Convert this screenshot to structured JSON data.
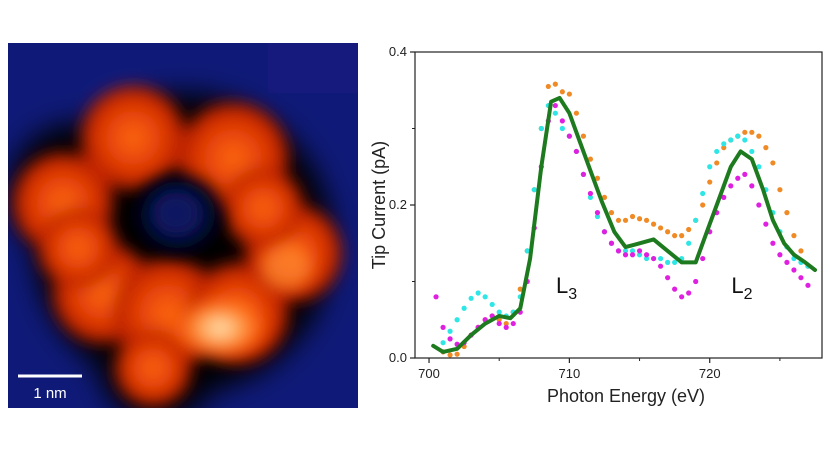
{
  "stm_image": {
    "scale_bar_label": "1 nm",
    "colors": {
      "background": "#0f1a78",
      "dark": "#000000",
      "mid": "#c02000",
      "bright": "#ff6a10",
      "hot": "#ffe6b0"
    }
  },
  "chart_data": {
    "type": "scatter",
    "xlabel": "Photon Energy (eV)",
    "ylabel": "Tip Current (pA)",
    "xlim": [
      699,
      728
    ],
    "ylim": [
      0,
      0.4
    ],
    "xticks": [
      700,
      710,
      720
    ],
    "yticks": [
      0.0,
      0.2,
      0.4
    ],
    "ytick_labels": [
      "0.0",
      "0.2",
      "0.4"
    ],
    "grid": false,
    "annotations": [
      {
        "text": "L",
        "sub": "3",
        "x": 709.8,
        "y": 0.085
      },
      {
        "text": "L",
        "sub": "2",
        "x": 722.3,
        "y": 0.085
      }
    ],
    "series": [
      {
        "kind": "line",
        "color": "#1e7a1e",
        "x": [
          700.3,
          701,
          702,
          703,
          704,
          705,
          705.8,
          706.5,
          707.2,
          708,
          708.7,
          709.3,
          710,
          710.8,
          711.5,
          712.3,
          713.2,
          714,
          715,
          716,
          717,
          718,
          719,
          720,
          720.8,
          721.5,
          722.2,
          723,
          723.8,
          724.5,
          725.3,
          726,
          726.8,
          727.5
        ],
        "y": [
          0.016,
          0.008,
          0.012,
          0.03,
          0.045,
          0.055,
          0.052,
          0.065,
          0.13,
          0.25,
          0.335,
          0.34,
          0.32,
          0.28,
          0.245,
          0.205,
          0.165,
          0.145,
          0.15,
          0.155,
          0.14,
          0.125,
          0.125,
          0.175,
          0.215,
          0.25,
          0.27,
          0.26,
          0.22,
          0.18,
          0.15,
          0.135,
          0.125,
          0.115
        ]
      },
      {
        "kind": "scatter",
        "color": "#f08a25",
        "x": [
          701,
          701.5,
          702,
          702.5,
          703,
          703.5,
          704,
          704.5,
          705,
          705.5,
          706,
          706.5,
          707,
          707.5,
          708,
          708.5,
          709,
          709.5,
          710,
          710.5,
          711,
          711.5,
          712,
          712.5,
          713,
          713.5,
          714,
          714.5,
          715,
          715.5,
          716,
          716.5,
          717,
          717.5,
          718,
          718.5,
          719,
          719.5,
          720,
          720.5,
          721,
          721.5,
          722,
          722.5,
          723,
          723.5,
          724,
          724.5,
          725,
          725.5,
          726,
          726.5,
          727
        ],
        "y": [
          0.008,
          0.004,
          0.005,
          0.015,
          0.03,
          0.04,
          0.05,
          0.055,
          0.05,
          0.045,
          0.06,
          0.09,
          0.14,
          0.22,
          0.3,
          0.355,
          0.358,
          0.348,
          0.345,
          0.32,
          0.29,
          0.26,
          0.235,
          0.21,
          0.19,
          0.18,
          0.18,
          0.185,
          0.182,
          0.18,
          0.175,
          0.17,
          0.165,
          0.16,
          0.16,
          0.168,
          0.18,
          0.2,
          0.23,
          0.255,
          0.275,
          0.285,
          0.29,
          0.295,
          0.295,
          0.29,
          0.275,
          0.255,
          0.22,
          0.19,
          0.16,
          0.14,
          0.12
        ]
      },
      {
        "kind": "scatter",
        "color": "#2ee6e6",
        "x": [
          701,
          701.5,
          702,
          702.5,
          703,
          703.5,
          704,
          704.5,
          705,
          705.5,
          706,
          706.5,
          707,
          707.5,
          708,
          708.5,
          709,
          709.5,
          710,
          710.5,
          711,
          711.5,
          712,
          712.5,
          713,
          713.5,
          714,
          714.5,
          715,
          715.5,
          716,
          716.5,
          717,
          717.5,
          718,
          718.5,
          719,
          719.5,
          720,
          720.5,
          721,
          721.5,
          722,
          722.5,
          723,
          723.5,
          724,
          724.5,
          725,
          725.5,
          726,
          726.5,
          727
        ],
        "y": [
          0.02,
          0.035,
          0.05,
          0.065,
          0.078,
          0.085,
          0.08,
          0.07,
          0.06,
          0.055,
          0.06,
          0.08,
          0.14,
          0.22,
          0.3,
          0.33,
          0.32,
          0.3,
          0.29,
          0.27,
          0.24,
          0.21,
          0.185,
          0.165,
          0.15,
          0.14,
          0.14,
          0.14,
          0.135,
          0.13,
          0.13,
          0.13,
          0.125,
          0.125,
          0.13,
          0.15,
          0.18,
          0.215,
          0.25,
          0.27,
          0.28,
          0.285,
          0.29,
          0.285,
          0.27,
          0.25,
          0.22,
          0.19,
          0.165,
          0.145,
          0.13,
          0.125,
          0.12
        ]
      },
      {
        "kind": "scatter",
        "color": "#e020e0",
        "x": [
          700.5,
          701,
          701.5,
          702,
          702.5,
          703,
          703.5,
          704,
          704.5,
          705,
          705.5,
          706,
          706.5,
          707,
          707.5,
          708,
          708.5,
          709,
          709.5,
          710,
          710.5,
          711,
          711.5,
          712,
          712.5,
          713,
          713.5,
          714,
          714.5,
          715,
          715.5,
          716,
          716.5,
          717,
          717.5,
          718,
          718.5,
          719,
          719.5,
          720,
          720.5,
          721,
          721.5,
          722,
          722.5,
          723,
          723.5,
          724,
          724.5,
          725,
          725.5,
          726,
          726.5,
          727
        ],
        "y": [
          0.08,
          0.04,
          0.025,
          0.018,
          0.02,
          0.03,
          0.04,
          0.05,
          0.055,
          0.045,
          0.04,
          0.045,
          0.06,
          0.1,
          0.17,
          0.25,
          0.31,
          0.33,
          0.31,
          0.29,
          0.27,
          0.24,
          0.215,
          0.19,
          0.165,
          0.15,
          0.14,
          0.135,
          0.135,
          0.14,
          0.135,
          0.13,
          0.12,
          0.105,
          0.09,
          0.08,
          0.085,
          0.1,
          0.13,
          0.165,
          0.19,
          0.21,
          0.225,
          0.235,
          0.24,
          0.225,
          0.2,
          0.175,
          0.15,
          0.135,
          0.125,
          0.115,
          0.105,
          0.095
        ]
      }
    ]
  }
}
